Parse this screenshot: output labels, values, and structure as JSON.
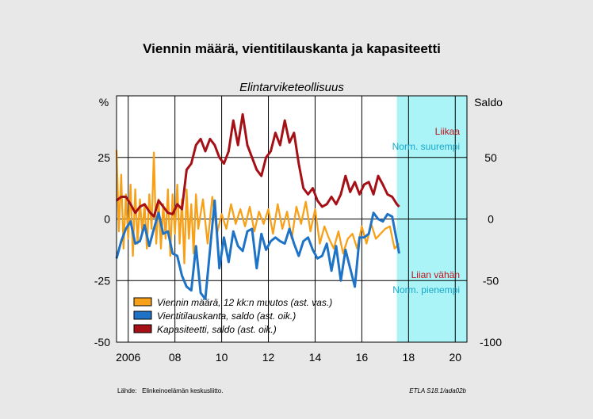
{
  "title": "Viennin määrä, vientitilauskanta ja kapasiteetti",
  "subtitle": "Elintarviketeollisuus",
  "source": "Lähde:   Elinkeinoelämän keskusliitto.",
  "code": "ETLA S18.1/ada02b",
  "colors": {
    "frame": "#e8e8e8",
    "plot_bg": "#ffffff",
    "forecast_bg": "#aaf4f8",
    "orange": "#f7a11a",
    "blue": "#1f73c6",
    "red": "#a51016",
    "label_red": "#c0141c",
    "label_cyan": "#1aa6c8"
  },
  "annotations": {
    "upper_red": "Liikaa",
    "upper_cyan": "Norm. suurempi",
    "lower_red": "Liian vähän",
    "lower_cyan": "Norm. pienempi"
  },
  "legend": [
    {
      "label": "Viennin määrä, 12 kk:n muutos (ast. vas.)",
      "color": "#f7a11a"
    },
    {
      "label": "Vientitilauskanta, saldo (ast. oik.)",
      "color": "#1f73c6"
    },
    {
      "label": "Kapasiteetti, saldo (ast. oik.)",
      "color": "#a51016"
    }
  ],
  "chart_data": {
    "type": "line",
    "x_range": [
      2005.5,
      2020.5
    ],
    "x_ticks": [
      {
        "value": 2006,
        "label": "2006"
      },
      {
        "value": 2008,
        "label": "08"
      },
      {
        "value": 2010,
        "label": "10"
      },
      {
        "value": 2012,
        "label": "12"
      },
      {
        "value": 2014,
        "label": "14"
      },
      {
        "value": 2016,
        "label": "16"
      },
      {
        "value": 2018,
        "label": "18"
      },
      {
        "value": 2020,
        "label": "20"
      }
    ],
    "y_left": {
      "label": "%",
      "range": [
        -50,
        50
      ],
      "ticks": [
        "-50",
        "-25",
        "0",
        "25"
      ]
    },
    "y_right": {
      "label": "Saldo",
      "range": [
        -100,
        100
      ],
      "ticks": [
        "-100",
        "-50",
        "0",
        "50"
      ]
    },
    "forecast_shade": [
      2017.5,
      2020.5
    ],
    "grid": true,
    "series": [
      {
        "name": "Viennin määrä, 12 kk:n muutos (ast. vas.)",
        "axis": "left",
        "color": "#f7a11a",
        "x": [
          2005.5,
          2005.6,
          2005.7,
          2005.8,
          2005.9,
          2006.0,
          2006.1,
          2006.2,
          2006.3,
          2006.4,
          2006.5,
          2006.6,
          2006.7,
          2006.8,
          2006.9,
          2007.0,
          2007.1,
          2007.2,
          2007.3,
          2007.4,
          2007.5,
          2007.6,
          2007.7,
          2007.8,
          2007.9,
          2008.0,
          2008.1,
          2008.2,
          2008.3,
          2008.4,
          2008.5,
          2008.6,
          2008.7,
          2008.8,
          2008.9,
          2009.0,
          2009.2,
          2009.4,
          2009.6,
          2009.8,
          2010.0,
          2010.2,
          2010.4,
          2010.6,
          2010.8,
          2011.0,
          2011.2,
          2011.4,
          2011.6,
          2011.8,
          2012.0,
          2012.2,
          2012.4,
          2012.6,
          2012.8,
          2013.0,
          2013.2,
          2013.4,
          2013.6,
          2013.8,
          2014.0,
          2014.2,
          2014.4,
          2014.6,
          2014.8,
          2015.0,
          2015.2,
          2015.4,
          2015.6,
          2015.8,
          2016.0,
          2016.2,
          2016.4,
          2016.6,
          2016.8,
          2017.0,
          2017.2,
          2017.4,
          2017.6
        ],
        "values": [
          28,
          -5,
          18,
          -12,
          10,
          -8,
          14,
          -15,
          12,
          -10,
          8,
          -6,
          6,
          -12,
          10,
          -4,
          27,
          -10,
          8,
          -12,
          6,
          -8,
          12,
          -15,
          10,
          -6,
          14,
          -10,
          8,
          -18,
          12,
          -8,
          6,
          -14,
          10,
          -4,
          8,
          -10,
          9,
          -6,
          2,
          -4,
          6,
          -2,
          4,
          -3,
          5,
          -5,
          3,
          -2,
          4,
          -6,
          6,
          -4,
          3,
          -8,
          5,
          -2,
          7,
          -5,
          4,
          -10,
          -3,
          -8,
          -12,
          -5,
          -14,
          -8,
          -6,
          -12,
          -3,
          -10,
          -2,
          -8,
          -6,
          -4,
          -3,
          -12,
          -10
        ]
      },
      {
        "name": "Vientitilauskanta, saldo (ast. oik.)",
        "axis": "right",
        "color": "#1f73c6",
        "x": [
          2005.5,
          2005.7,
          2005.9,
          2006.1,
          2006.3,
          2006.5,
          2006.7,
          2006.9,
          2007.1,
          2007.3,
          2007.5,
          2007.7,
          2007.9,
          2008.1,
          2008.3,
          2008.5,
          2008.7,
          2008.9,
          2009.1,
          2009.3,
          2009.5,
          2009.7,
          2009.9,
          2010.1,
          2010.3,
          2010.5,
          2010.7,
          2010.9,
          2011.1,
          2011.3,
          2011.5,
          2011.7,
          2011.9,
          2012.1,
          2012.3,
          2012.5,
          2012.7,
          2012.9,
          2013.1,
          2013.3,
          2013.5,
          2013.7,
          2013.9,
          2014.1,
          2014.3,
          2014.5,
          2014.7,
          2014.9,
          2015.1,
          2015.3,
          2015.5,
          2015.7,
          2015.9,
          2016.1,
          2016.3,
          2016.5,
          2016.7,
          2016.9,
          2017.1,
          2017.3,
          2017.5,
          2017.6
        ],
        "values": [
          -32,
          -18,
          -8,
          -2,
          -20,
          -18,
          -5,
          -22,
          -8,
          5,
          -12,
          -10,
          -28,
          -30,
          -46,
          -55,
          -58,
          -22,
          -60,
          -65,
          -25,
          15,
          -40,
          -15,
          -35,
          -10,
          -22,
          -26,
          -10,
          -8,
          -40,
          -12,
          -25,
          -18,
          -15,
          -18,
          -20,
          -8,
          -20,
          -30,
          -18,
          -15,
          -25,
          -32,
          -30,
          -20,
          -42,
          -22,
          -50,
          -25,
          -40,
          -55,
          -15,
          -15,
          -12,
          5,
          0,
          -2,
          4,
          2,
          -18,
          -28
        ]
      },
      {
        "name": "Kapasiteetti, saldo (ast. oik.)",
        "axis": "right",
        "color": "#a51016",
        "x": [
          2005.5,
          2005.7,
          2005.9,
          2006.1,
          2006.3,
          2006.5,
          2006.7,
          2006.9,
          2007.1,
          2007.3,
          2007.5,
          2007.7,
          2007.9,
          2008.1,
          2008.3,
          2008.5,
          2008.7,
          2008.9,
          2009.1,
          2009.3,
          2009.5,
          2009.7,
          2009.9,
          2010.1,
          2010.3,
          2010.5,
          2010.7,
          2010.9,
          2011.1,
          2011.3,
          2011.5,
          2011.7,
          2011.9,
          2012.1,
          2012.3,
          2012.5,
          2012.7,
          2012.9,
          2013.1,
          2013.3,
          2013.5,
          2013.7,
          2013.9,
          2014.1,
          2014.3,
          2014.5,
          2014.7,
          2014.9,
          2015.1,
          2015.3,
          2015.5,
          2015.7,
          2015.9,
          2016.1,
          2016.3,
          2016.5,
          2016.7,
          2016.9,
          2017.1,
          2017.3,
          2017.5,
          2017.6
        ],
        "values": [
          15,
          18,
          18,
          12,
          5,
          10,
          12,
          6,
          2,
          15,
          10,
          5,
          4,
          12,
          8,
          40,
          45,
          60,
          65,
          55,
          65,
          60,
          50,
          45,
          55,
          80,
          60,
          85,
          60,
          50,
          40,
          35,
          50,
          55,
          70,
          60,
          80,
          62,
          70,
          45,
          25,
          20,
          25,
          15,
          10,
          12,
          18,
          12,
          20,
          35,
          22,
          30,
          20,
          28,
          30,
          20,
          35,
          28,
          20,
          18,
          12,
          10
        ]
      }
    ]
  }
}
